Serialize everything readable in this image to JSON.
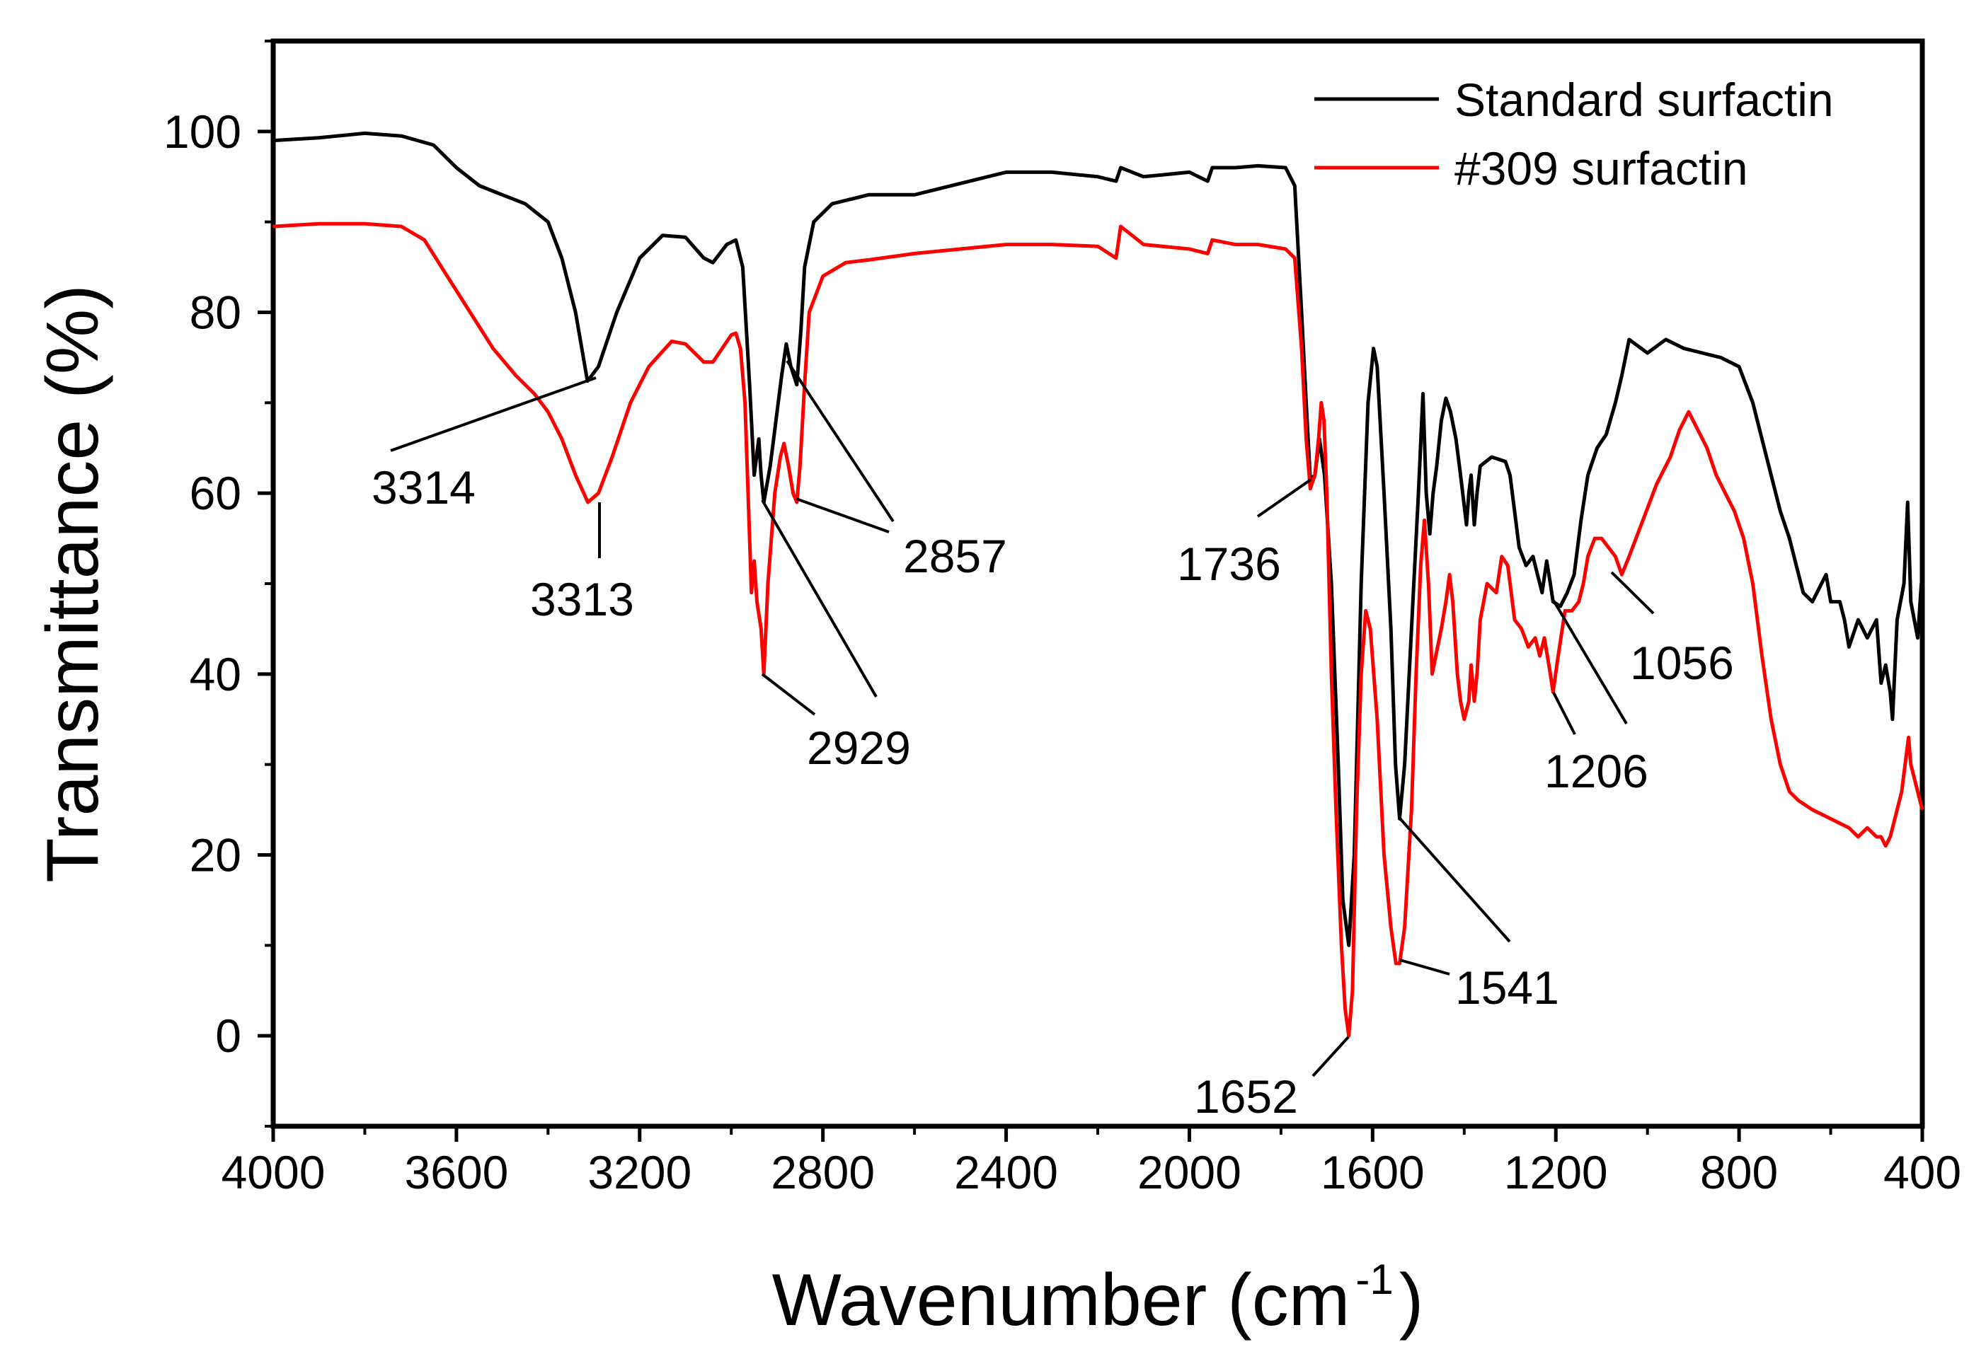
{
  "chart_data": {
    "type": "line",
    "title": "",
    "xlabel": "Wavenumber (cm",
    "xlabel_sup": "-1",
    "xlabel_close": ")",
    "ylabel": "Transmittance (%)",
    "xlim": [
      4000,
      400
    ],
    "ylim": [
      -10,
      110
    ],
    "x_ticks": [
      4000,
      3600,
      3200,
      2800,
      2400,
      2000,
      1600,
      1200,
      800,
      400
    ],
    "y_ticks": [
      0,
      20,
      40,
      60,
      80,
      100
    ],
    "legend_position": "top-right",
    "series": [
      {
        "name": "Standard surfactin",
        "color": "#000000",
        "points": [
          [
            4000,
            99
          ],
          [
            3900,
            99.3
          ],
          [
            3800,
            99.8
          ],
          [
            3720,
            99.5
          ],
          [
            3650,
            98.5
          ],
          [
            3600,
            96
          ],
          [
            3550,
            94
          ],
          [
            3500,
            93
          ],
          [
            3450,
            92
          ],
          [
            3400,
            90
          ],
          [
            3370,
            86
          ],
          [
            3340,
            80
          ],
          [
            3314,
            72.4
          ],
          [
            3290,
            74
          ],
          [
            3250,
            80
          ],
          [
            3200,
            86
          ],
          [
            3150,
            88.5
          ],
          [
            3100,
            88.3
          ],
          [
            3060,
            86
          ],
          [
            3040,
            85.5
          ],
          [
            3010,
            87.5
          ],
          [
            2990,
            88
          ],
          [
            2975,
            85
          ],
          [
            2960,
            72
          ],
          [
            2950,
            62
          ],
          [
            2940,
            66
          ],
          [
            2935,
            62
          ],
          [
            2929,
            59
          ],
          [
            2915,
            63
          ],
          [
            2890,
            73
          ],
          [
            2880,
            76.5
          ],
          [
            2870,
            74
          ],
          [
            2857,
            72
          ],
          [
            2848,
            78
          ],
          [
            2840,
            85
          ],
          [
            2820,
            90
          ],
          [
            2780,
            92
          ],
          [
            2700,
            93
          ],
          [
            2600,
            93
          ],
          [
            2400,
            95.5
          ],
          [
            2300,
            95.5
          ],
          [
            2200,
            95
          ],
          [
            2160,
            94.5
          ],
          [
            2150,
            96
          ],
          [
            2100,
            95
          ],
          [
            2000,
            95.5
          ],
          [
            1960,
            94.5
          ],
          [
            1950,
            96
          ],
          [
            1900,
            96
          ],
          [
            1850,
            96.2
          ],
          [
            1790,
            96
          ],
          [
            1770,
            94
          ],
          [
            1755,
            80
          ],
          [
            1745,
            70
          ],
          [
            1736,
            61.5
          ],
          [
            1726,
            62
          ],
          [
            1716,
            66
          ],
          [
            1705,
            62
          ],
          [
            1690,
            50
          ],
          [
            1675,
            30
          ],
          [
            1665,
            15
          ],
          [
            1652,
            10
          ],
          [
            1640,
            20
          ],
          [
            1625,
            50
          ],
          [
            1610,
            70
          ],
          [
            1598,
            76
          ],
          [
            1590,
            74
          ],
          [
            1575,
            60
          ],
          [
            1560,
            45
          ],
          [
            1550,
            30
          ],
          [
            1541,
            24
          ],
          [
            1530,
            30
          ],
          [
            1515,
            45
          ],
          [
            1500,
            60
          ],
          [
            1490,
            71
          ],
          [
            1483,
            60
          ],
          [
            1475,
            55.5
          ],
          [
            1468,
            60
          ],
          [
            1460,
            63
          ],
          [
            1450,
            68
          ],
          [
            1440,
            70.5
          ],
          [
            1430,
            69
          ],
          [
            1418,
            66
          ],
          [
            1408,
            62
          ],
          [
            1395,
            56.5
          ],
          [
            1390,
            60
          ],
          [
            1385,
            62
          ],
          [
            1378,
            56.5
          ],
          [
            1372,
            60
          ],
          [
            1365,
            63
          ],
          [
            1340,
            64
          ],
          [
            1310,
            63.5
          ],
          [
            1300,
            62
          ],
          [
            1280,
            54
          ],
          [
            1265,
            52
          ],
          [
            1250,
            53
          ],
          [
            1240,
            51
          ],
          [
            1230,
            49
          ],
          [
            1220,
            52.5
          ],
          [
            1212,
            50
          ],
          [
            1206,
            48
          ],
          [
            1190,
            47.5
          ],
          [
            1175,
            49
          ],
          [
            1160,
            51
          ],
          [
            1145,
            57
          ],
          [
            1130,
            62
          ],
          [
            1110,
            65
          ],
          [
            1090,
            66.5
          ],
          [
            1070,
            70
          ],
          [
            1056,
            73
          ],
          [
            1040,
            77
          ],
          [
            1000,
            75.5
          ],
          [
            960,
            77
          ],
          [
            920,
            76
          ],
          [
            880,
            75.5
          ],
          [
            840,
            75
          ],
          [
            800,
            74
          ],
          [
            770,
            70
          ],
          [
            740,
            64
          ],
          [
            710,
            58
          ],
          [
            690,
            55
          ],
          [
            660,
            49
          ],
          [
            640,
            48
          ],
          [
            620,
            50
          ],
          [
            610,
            51
          ],
          [
            600,
            48
          ],
          [
            580,
            48
          ],
          [
            570,
            46
          ],
          [
            560,
            43
          ],
          [
            540,
            46
          ],
          [
            520,
            44
          ],
          [
            500,
            46
          ],
          [
            490,
            39
          ],
          [
            480,
            41
          ],
          [
            470,
            38
          ],
          [
            465,
            35
          ],
          [
            455,
            46
          ],
          [
            440,
            50
          ],
          [
            432,
            59
          ],
          [
            425,
            48
          ],
          [
            410,
            44
          ],
          [
            402,
            50
          ],
          [
            400,
            43
          ]
        ]
      },
      {
        "name": "#309 surfactin",
        "color": "#ff0000",
        "points": [
          [
            4000,
            89.5
          ],
          [
            3900,
            89.8
          ],
          [
            3800,
            89.8
          ],
          [
            3720,
            89.5
          ],
          [
            3670,
            88
          ],
          [
            3620,
            84
          ],
          [
            3570,
            80
          ],
          [
            3520,
            76
          ],
          [
            3470,
            73
          ],
          [
            3430,
            71
          ],
          [
            3400,
            69
          ],
          [
            3370,
            66
          ],
          [
            3340,
            62
          ],
          [
            3313,
            59
          ],
          [
            3290,
            60
          ],
          [
            3260,
            64
          ],
          [
            3220,
            70
          ],
          [
            3180,
            74
          ],
          [
            3130,
            76.8
          ],
          [
            3100,
            76.5
          ],
          [
            3060,
            74.5
          ],
          [
            3040,
            74.5
          ],
          [
            3000,
            77.5
          ],
          [
            2990,
            77.7
          ],
          [
            2980,
            76
          ],
          [
            2970,
            70
          ],
          [
            2962,
            58
          ],
          [
            2956,
            49
          ],
          [
            2950,
            52.5
          ],
          [
            2944,
            48
          ],
          [
            2935,
            45
          ],
          [
            2929,
            40
          ],
          [
            2920,
            50
          ],
          [
            2905,
            60
          ],
          [
            2893,
            64
          ],
          [
            2885,
            65.5
          ],
          [
            2875,
            63
          ],
          [
            2865,
            60
          ],
          [
            2857,
            59
          ],
          [
            2850,
            63
          ],
          [
            2840,
            72
          ],
          [
            2830,
            80
          ],
          [
            2800,
            84
          ],
          [
            2750,
            85.5
          ],
          [
            2700,
            85.8
          ],
          [
            2600,
            86.5
          ],
          [
            2500,
            87
          ],
          [
            2400,
            87.5
          ],
          [
            2300,
            87.5
          ],
          [
            2200,
            87.3
          ],
          [
            2160,
            86
          ],
          [
            2150,
            89.5
          ],
          [
            2100,
            87.5
          ],
          [
            2000,
            87
          ],
          [
            1960,
            86.5
          ],
          [
            1950,
            88
          ],
          [
            1900,
            87.5
          ],
          [
            1850,
            87.5
          ],
          [
            1790,
            87
          ],
          [
            1770,
            86
          ],
          [
            1755,
            76
          ],
          [
            1745,
            66
          ],
          [
            1736,
            60.5
          ],
          [
            1726,
            62
          ],
          [
            1718,
            66
          ],
          [
            1712,
            70
          ],
          [
            1706,
            68
          ],
          [
            1700,
            60
          ],
          [
            1690,
            40
          ],
          [
            1680,
            25
          ],
          [
            1668,
            10
          ],
          [
            1660,
            3
          ],
          [
            1652,
            0
          ],
          [
            1644,
            5
          ],
          [
            1635,
            25
          ],
          [
            1625,
            40
          ],
          [
            1615,
            47
          ],
          [
            1605,
            45
          ],
          [
            1590,
            35
          ],
          [
            1575,
            20
          ],
          [
            1560,
            12
          ],
          [
            1549,
            8
          ],
          [
            1541,
            8
          ],
          [
            1530,
            12
          ],
          [
            1515,
            25
          ],
          [
            1505,
            40
          ],
          [
            1495,
            52
          ],
          [
            1487,
            57
          ],
          [
            1478,
            50
          ],
          [
            1470,
            40
          ],
          [
            1462,
            42
          ],
          [
            1450,
            45
          ],
          [
            1440,
            48
          ],
          [
            1432,
            51
          ],
          [
            1425,
            48
          ],
          [
            1415,
            40
          ],
          [
            1408,
            37
          ],
          [
            1400,
            35
          ],
          [
            1390,
            37
          ],
          [
            1385,
            41
          ],
          [
            1378,
            37
          ],
          [
            1372,
            40
          ],
          [
            1365,
            46
          ],
          [
            1350,
            50
          ],
          [
            1330,
            49
          ],
          [
            1318,
            53
          ],
          [
            1305,
            52
          ],
          [
            1290,
            46
          ],
          [
            1275,
            45
          ],
          [
            1260,
            43
          ],
          [
            1245,
            44
          ],
          [
            1235,
            42
          ],
          [
            1225,
            44
          ],
          [
            1212,
            40
          ],
          [
            1206,
            38
          ],
          [
            1195,
            42
          ],
          [
            1180,
            47
          ],
          [
            1165,
            47
          ],
          [
            1150,
            48
          ],
          [
            1140,
            50
          ],
          [
            1130,
            53
          ],
          [
            1115,
            55
          ],
          [
            1100,
            55
          ],
          [
            1085,
            54
          ],
          [
            1070,
            53
          ],
          [
            1056,
            51
          ],
          [
            1040,
            53
          ],
          [
            1010,
            57
          ],
          [
            980,
            61
          ],
          [
            950,
            64
          ],
          [
            930,
            67
          ],
          [
            910,
            69
          ],
          [
            890,
            67
          ],
          [
            870,
            65
          ],
          [
            850,
            62
          ],
          [
            830,
            60
          ],
          [
            810,
            58
          ],
          [
            790,
            55
          ],
          [
            770,
            50
          ],
          [
            750,
            42
          ],
          [
            730,
            35
          ],
          [
            710,
            30
          ],
          [
            690,
            27
          ],
          [
            670,
            26
          ],
          [
            640,
            25
          ],
          [
            600,
            24
          ],
          [
            560,
            23
          ],
          [
            540,
            22
          ],
          [
            520,
            23
          ],
          [
            500,
            22
          ],
          [
            490,
            22
          ],
          [
            480,
            21
          ],
          [
            470,
            22
          ],
          [
            460,
            24
          ],
          [
            445,
            27
          ],
          [
            435,
            31
          ],
          [
            430,
            33
          ],
          [
            425,
            30
          ],
          [
            410,
            27
          ],
          [
            400,
            25
          ]
        ]
      }
    ],
    "annotations": [
      {
        "label": "3314",
        "series": "Standard surfactin",
        "x": 3314,
        "y": 72.4
      },
      {
        "label": "3313",
        "series": "#309 surfactin",
        "x": 3313,
        "y": 59
      },
      {
        "label": "2929",
        "series": "both",
        "x": 2929,
        "y": 59
      },
      {
        "label": "2857",
        "series": "both",
        "x": 2857,
        "y": 72
      },
      {
        "label": "1736",
        "series": "Standard surfactin",
        "x": 1736,
        "y": 61.5
      },
      {
        "label": "1652",
        "series": "#309 surfactin",
        "x": 1652,
        "y": 0
      },
      {
        "label": "1541",
        "series": "both",
        "x": 1541,
        "y": 24
      },
      {
        "label": "1206",
        "series": "both",
        "x": 1206,
        "y": 48
      },
      {
        "label": "1056",
        "series": "#309 surfactin",
        "x": 1056,
        "y": 51
      }
    ]
  }
}
